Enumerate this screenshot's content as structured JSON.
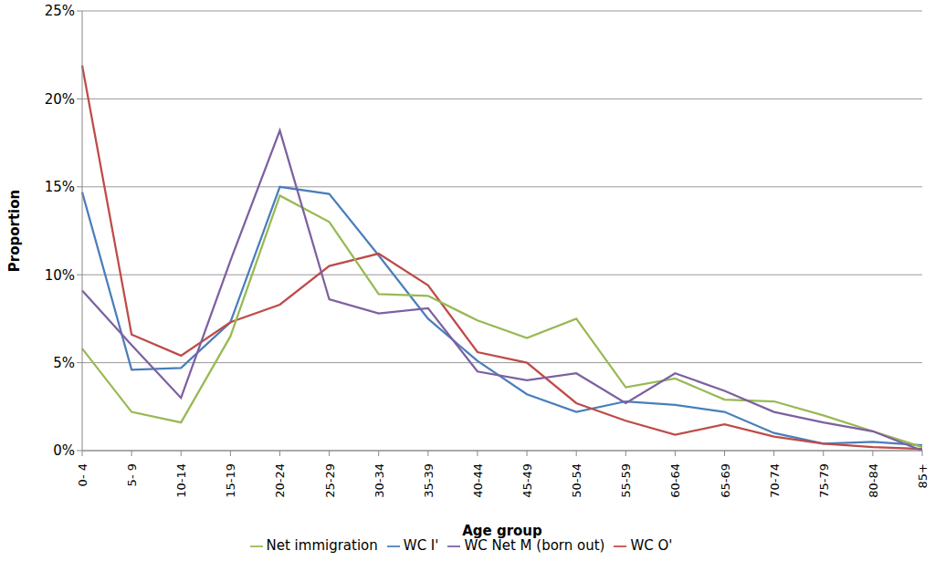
{
  "chart_data": {
    "type": "line",
    "x_label": "Age group",
    "y_label": "Proportion",
    "categories": [
      "0- 4",
      "5- 9",
      "10-14",
      "15-19",
      "20-24",
      "25-29",
      "30-34",
      "35-39",
      "40-44",
      "45-49",
      "50-54",
      "55-59",
      "60-64",
      "65-69",
      "70-74",
      "75-79",
      "80-84",
      "85+"
    ],
    "series": [
      {
        "name": "WC I'",
        "color": "#4a7ebb",
        "values": [
          14.7,
          4.6,
          4.7,
          7.3,
          15.0,
          14.6,
          11.1,
          7.5,
          5.1,
          3.2,
          2.2,
          2.8,
          2.6,
          2.2,
          1.0,
          0.4,
          0.5,
          0.3
        ]
      },
      {
        "name": "WC O'",
        "color": "#be4b48",
        "values": [
          21.9,
          6.6,
          5.4,
          7.3,
          8.3,
          10.5,
          11.2,
          9.4,
          5.6,
          5.0,
          2.7,
          1.7,
          0.9,
          1.5,
          0.8,
          0.4,
          0.2,
          0.1
        ]
      },
      {
        "name": "Net immigration",
        "color": "#98b954",
        "values": [
          5.8,
          2.2,
          1.6,
          6.5,
          14.5,
          13.0,
          8.9,
          8.8,
          7.4,
          6.4,
          7.5,
          3.6,
          4.1,
          2.9,
          2.8,
          2.0,
          1.1,
          0.2
        ]
      },
      {
        "name": "WC Net M (born out)",
        "color": "#7d60a0",
        "values": [
          9.1,
          6.0,
          3.0,
          10.8,
          18.2,
          8.6,
          7.8,
          8.1,
          4.5,
          4.0,
          4.4,
          2.7,
          4.4,
          3.4,
          2.2,
          1.6,
          1.1,
          0.0
        ]
      }
    ],
    "ylim": [
      0,
      25
    ],
    "yticks": [
      {
        "value": 0,
        "label": "0%"
      },
      {
        "value": 5,
        "label": "5%"
      },
      {
        "value": 10,
        "label": "10%"
      },
      {
        "value": 15,
        "label": "15%"
      },
      {
        "value": 20,
        "label": "20%"
      },
      {
        "value": 25,
        "label": "25%"
      }
    ],
    "grid": true,
    "legend": "bottom",
    "marker": "none"
  }
}
